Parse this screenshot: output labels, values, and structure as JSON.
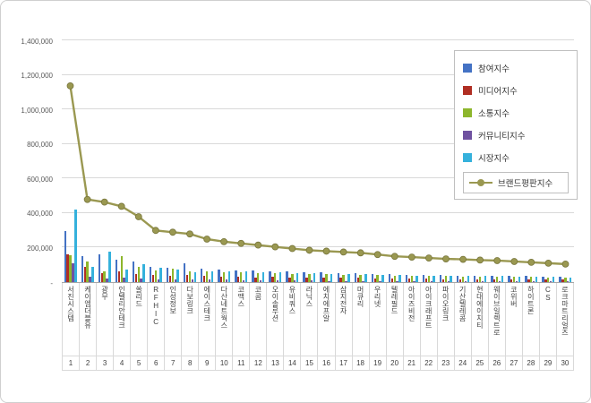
{
  "chart_data": {
    "type": "bar+line",
    "title": "",
    "grid": true,
    "legend_position": "top-right",
    "ylim": [
      0,
      1400000
    ],
    "ytick_interval": 200000,
    "ytick_labels": [
      "1,400,000",
      "1,200,000",
      "1,000,000",
      "800,000",
      "600,000",
      "400,000",
      "200,000",
      "-"
    ],
    "categories": [
      "서진시스템",
      "케이엠더블유",
      "광무",
      "인텔리안테크",
      "쏠리드",
      "RFHIC",
      "인성정보",
      "다보링크",
      "에이스테크",
      "다산네트웍스",
      "코맥스",
      "코콤",
      "오이솔루션",
      "유비쿼스",
      "라닉스",
      "에치에프알",
      "삼지전자",
      "머큐리",
      "우리넷",
      "텔레필드",
      "아이즈비전",
      "아이크래프트",
      "파이오링크",
      "기산텔레콤",
      "현대에이치티",
      "웨이브일렉트로",
      "코위버",
      "하이트론",
      "CS",
      "로크마트리얼즈"
    ],
    "ranks": [
      "1",
      "2",
      "3",
      "4",
      "5",
      "6",
      "7",
      "8",
      "9",
      "10",
      "11",
      "12",
      "13",
      "14",
      "15",
      "16",
      "17",
      "18",
      "19",
      "20",
      "21",
      "22",
      "23",
      "24",
      "25",
      "26",
      "27",
      "28",
      "29",
      "30"
    ],
    "series": [
      {
        "name": "참여지수",
        "key": "participation-index",
        "type": "bar",
        "color": "#4472c4",
        "values": [
          295000,
          150000,
          160000,
          130000,
          120000,
          90000,
          85000,
          110000,
          80000,
          75000,
          70000,
          70000,
          60000,
          60000,
          55000,
          55000,
          52000,
          50000,
          48000,
          45000,
          43000,
          42000,
          40000,
          39000,
          38000,
          37000,
          36000,
          34000,
          33000,
          31000
        ]
      },
      {
        "name": "미디어지수",
        "key": "media-index",
        "type": "bar",
        "color": "#b02e23",
        "values": [
          160000,
          90000,
          50000,
          60000,
          45000,
          40000,
          35000,
          40000,
          35000,
          30000,
          30000,
          28000,
          30000,
          28000,
          25000,
          25000,
          25000,
          24000,
          22000,
          20000,
          20000,
          19000,
          18000,
          18000,
          17000,
          17000,
          16000,
          16000,
          15000,
          14000
        ]
      },
      {
        "name": "소통지수",
        "key": "communication-index",
        "type": "bar",
        "color": "#8db62c",
        "values": [
          155000,
          120000,
          60000,
          150000,
          90000,
          70000,
          80000,
          60000,
          60000,
          55000,
          55000,
          50000,
          50000,
          48000,
          45000,
          45000,
          43000,
          42000,
          40000,
          38000,
          36000,
          35000,
          34000,
          33000,
          32000,
          31000,
          30000,
          29000,
          28000,
          27000
        ]
      },
      {
        "name": "커뮤니티지수",
        "key": "community-index",
        "type": "bar",
        "color": "#6f52a0",
        "values": [
          110000,
          30000,
          20000,
          25000,
          20000,
          15000,
          15000,
          15000,
          15000,
          15000,
          10000,
          12000,
          10000,
          9000,
          10000,
          8000,
          8000,
          8000,
          7000,
          7000,
          7000,
          6000,
          6000,
          6000,
          6000,
          6000,
          5000,
          5000,
          5000,
          5000
        ]
      },
      {
        "name": "시장지수",
        "key": "market-index",
        "type": "bar",
        "color": "#35b1dc",
        "values": [
          420000,
          90000,
          175000,
          75000,
          105000,
          85000,
          75000,
          55000,
          60000,
          60000,
          60000,
          55000,
          55000,
          50000,
          50000,
          47000,
          47000,
          46000,
          43000,
          40000,
          39000,
          38000,
          37000,
          36000,
          35000,
          34000,
          33000,
          31000,
          29000,
          28000
        ]
      },
      {
        "name": "브랜드평판지수",
        "key": "brand-reputation-index",
        "type": "line",
        "color": "#9a9851",
        "marker_stroke": "#77753b",
        "values": [
          1140000,
          480000,
          465000,
          440000,
          380000,
          300000,
          290000,
          280000,
          250000,
          235000,
          225000,
          215000,
          205000,
          195000,
          185000,
          180000,
          175000,
          170000,
          160000,
          150000,
          145000,
          140000,
          135000,
          132000,
          128000,
          125000,
          120000,
          115000,
          110000,
          105000
        ]
      }
    ]
  }
}
